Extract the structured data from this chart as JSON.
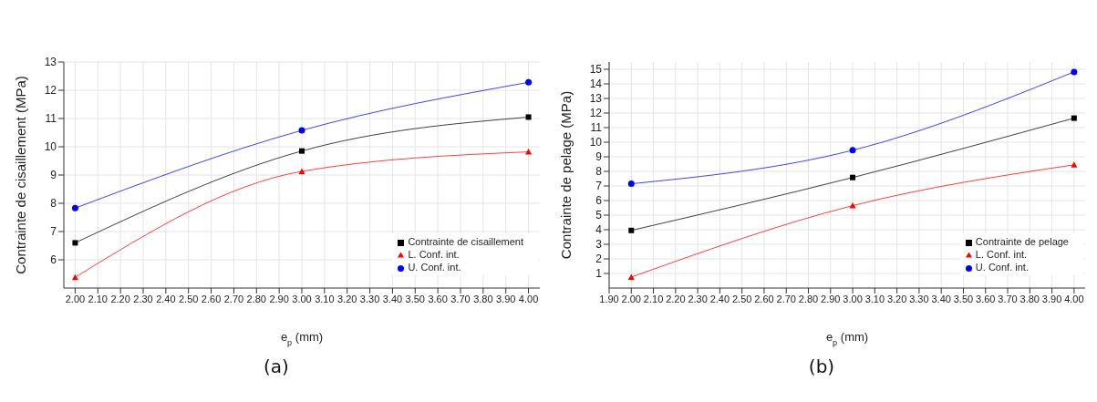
{
  "chart_data": [
    {
      "type": "line",
      "xlabel": "e$_{p}$ (mm)",
      "ylabel": "Contrainte de cisaillement (MPa)",
      "annotations": [
        "(a)"
      ],
      "x": [
        2,
        3,
        4
      ],
      "series": [
        {
          "name": "Contrainte de cisaillement",
          "color": "#000000",
          "values": [
            6.6,
            9.85,
            11.05
          ],
          "marker": "square"
        },
        {
          "name": "L. Conf. int.",
          "color": "#ff0000",
          "values": [
            5.38,
            9.13,
            9.82
          ],
          "marker": "triangle"
        },
        {
          "name": "U. Conf. int.",
          "color": "#0000ff",
          "values": [
            7.83,
            10.58,
            12.28
          ],
          "marker": "circle"
        }
      ],
      "xlim": [
        1.95,
        4.05
      ],
      "ylim": [
        5,
        13
      ],
      "yticks": [
        6,
        7,
        8,
        9,
        10,
        11,
        12,
        13
      ],
      "xticks": [
        {
          "value": 2,
          "label": "2.00"
        },
        {
          "value": 2.1,
          "label": "2.10"
        },
        {
          "value": 2.2,
          "label": "2.20"
        },
        {
          "value": 2.3,
          "label": "2.30"
        },
        {
          "value": 2.4,
          "label": "2.40"
        },
        {
          "value": 2.5,
          "label": "2.50"
        },
        {
          "value": 2.6,
          "label": "2.60"
        },
        {
          "value": 2.7,
          "label": "2.70"
        },
        {
          "value": 2.8,
          "label": "2.80"
        },
        {
          "value": 2.9,
          "label": "2.90"
        },
        {
          "value": 3,
          "label": "3.00"
        },
        {
          "value": 3.1,
          "label": "3.10"
        },
        {
          "value": 3.2,
          "label": "3.20"
        },
        {
          "value": 3.3,
          "label": "3.30"
        },
        {
          "value": 3.4,
          "label": "3.40"
        },
        {
          "value": 3.5,
          "label": "3.50"
        },
        {
          "value": 3.6,
          "label": "3.60"
        },
        {
          "value": 3.7,
          "label": "3.70"
        },
        {
          "value": 3.8,
          "label": "3.80"
        },
        {
          "value": 3.9,
          "label": "3.90"
        },
        {
          "value": 4,
          "label": "4.00"
        }
      ],
      "grid": true,
      "legend": "bottom right",
      "line_style": "solid"
    },
    {
      "type": "line",
      "xlabel": "e$_{p}$ (mm)",
      "ylabel": "Contrainte de pelage (MPa)",
      "annotations": [
        "(b)"
      ],
      "x": [
        2,
        3,
        4
      ],
      "series": [
        {
          "name": "Contrainte de pelage",
          "color": "#000000",
          "values": [
            3.95,
            7.58,
            11.65
          ],
          "marker": "square"
        },
        {
          "name": "L. Conf. int.",
          "color": "#ff0000",
          "values": [
            0.75,
            5.65,
            8.45
          ],
          "marker": "triangle"
        },
        {
          "name": "U. Conf. int.",
          "color": "#0000ff",
          "values": [
            7.15,
            9.45,
            14.82
          ],
          "marker": "circle"
        }
      ],
      "xlim": [
        1.9,
        4.05
      ],
      "ylim": [
        0,
        15.5
      ],
      "yticks": [
        1,
        2,
        3,
        4,
        5,
        6,
        7,
        8,
        9,
        10,
        11,
        12,
        13,
        14,
        15
      ],
      "xticks": [
        {
          "value": 1.9,
          "label": "1.90"
        },
        {
          "value": 2,
          "label": "2.00"
        },
        {
          "value": 2.1,
          "label": "2.10"
        },
        {
          "value": 2.2,
          "label": "2.20"
        },
        {
          "value": 2.3,
          "label": "2.30"
        },
        {
          "value": 2.4,
          "label": "2.40"
        },
        {
          "value": 2.5,
          "label": "2.50"
        },
        {
          "value": 2.6,
          "label": "2.60"
        },
        {
          "value": 2.7,
          "label": "2.70"
        },
        {
          "value": 2.8,
          "label": "2.80"
        },
        {
          "value": 2.9,
          "label": "2.90"
        },
        {
          "value": 3,
          "label": "3.00"
        },
        {
          "value": 3.1,
          "label": "3.10"
        },
        {
          "value": 3.2,
          "label": "3.20"
        },
        {
          "value": 3.3,
          "label": "3.30"
        },
        {
          "value": 3.4,
          "label": "3.40"
        },
        {
          "value": 3.5,
          "label": "3.50"
        },
        {
          "value": 3.6,
          "label": "3.60"
        },
        {
          "value": 3.7,
          "label": "3.70"
        },
        {
          "value": 3.8,
          "label": "3.80"
        },
        {
          "value": 3.9,
          "label": "3.90"
        },
        {
          "value": 4,
          "label": "4.00"
        }
      ],
      "grid": true,
      "legend": "bottom right",
      "line_style": "solid"
    }
  ]
}
